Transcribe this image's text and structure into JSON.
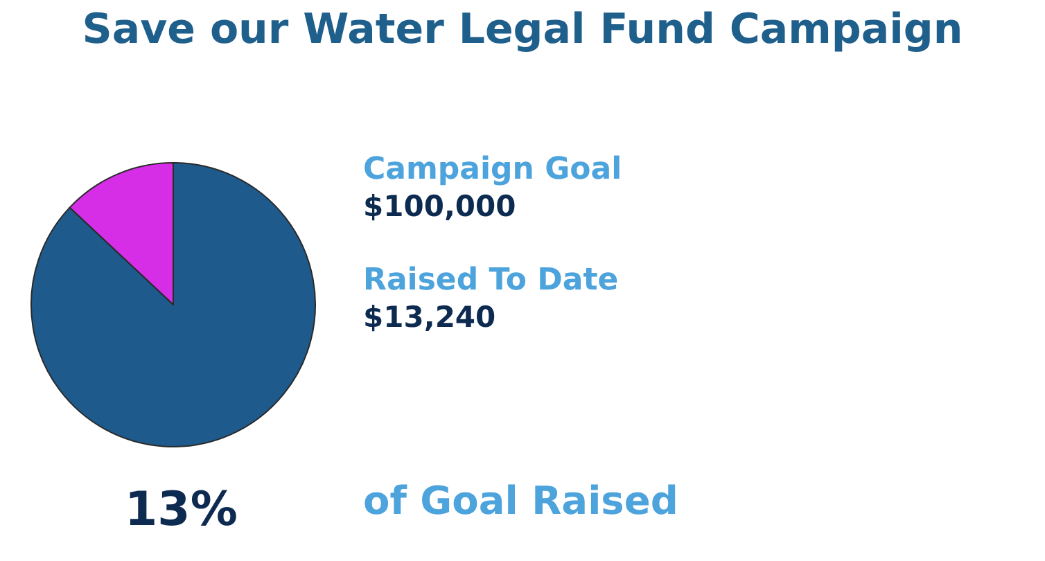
{
  "chart_data": {
    "type": "pie",
    "title": "Save our Water Legal Fund Campaign",
    "categories": [
      null,
      null
    ],
    "values": [
      13,
      87
    ],
    "colors": [
      "#d62ee6",
      "#1e5a8c"
    ],
    "annotations": [
      "Campaign Goal",
      "$100,000",
      "Raised To Date",
      "$13,240",
      "13%",
      "of Goal Raised"
    ]
  }
}
